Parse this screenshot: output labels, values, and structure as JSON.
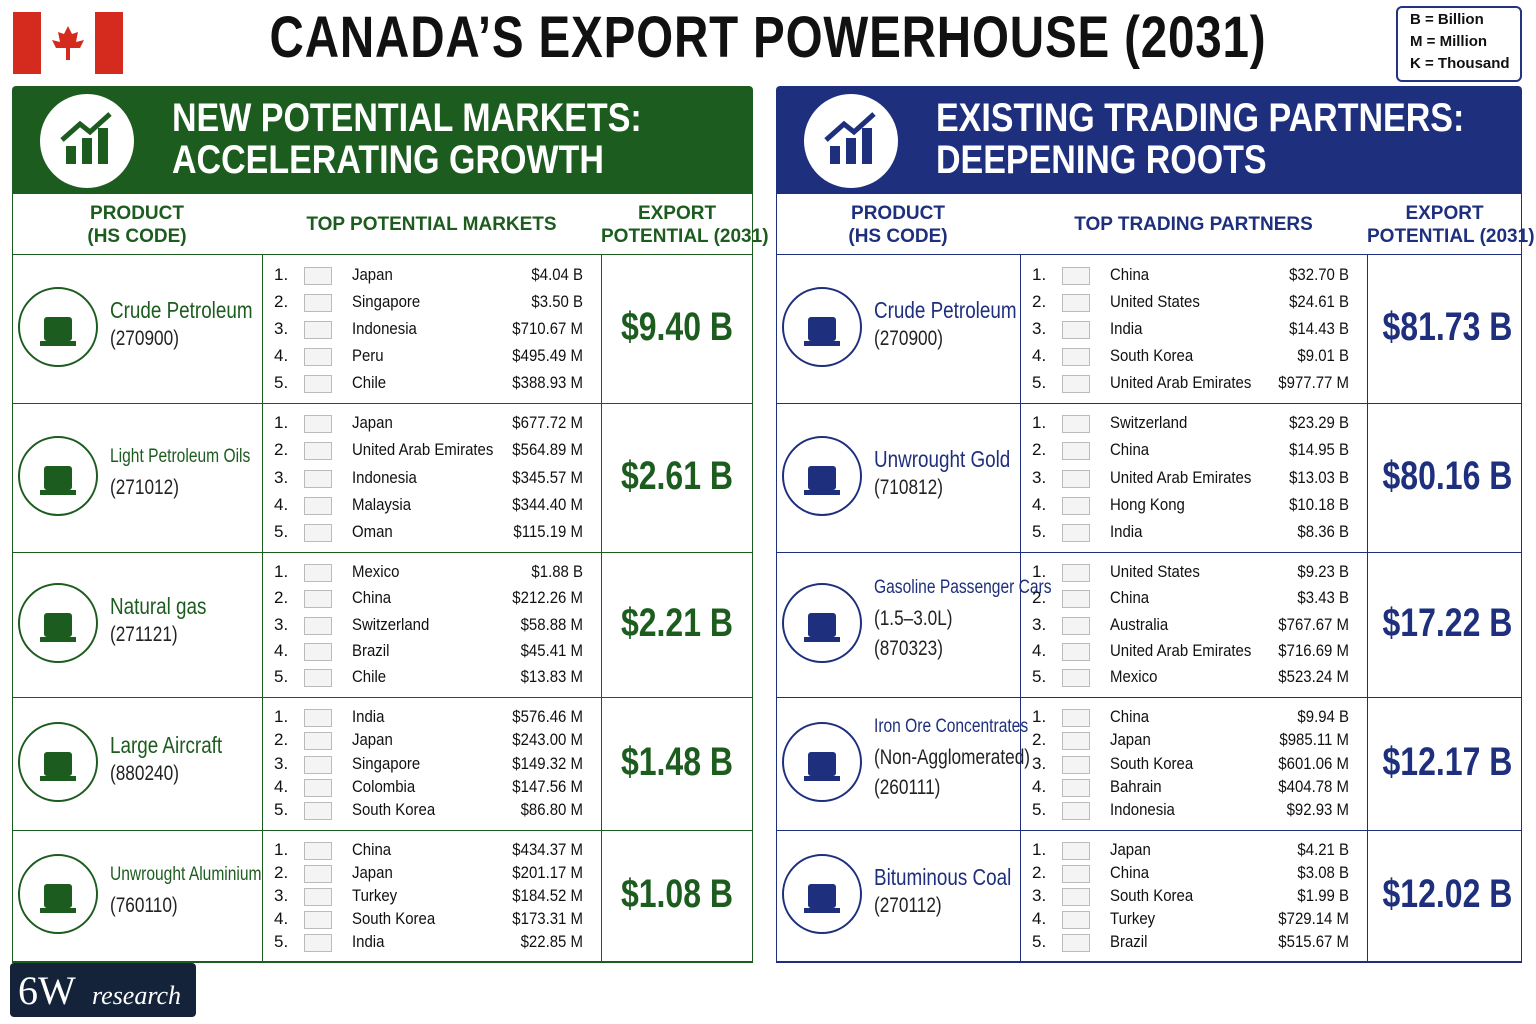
{
  "header": {
    "title": "CANADA’S EXPORT POWERHOUSE (2031)",
    "legend": [
      "B = Billion",
      "M = Million",
      "K = Thousand"
    ]
  },
  "panels": [
    {
      "title_lines": [
        "NEW POTENTIAL MARKETS:",
        "ACCELERATING GROWTH"
      ],
      "columns": [
        [
          "PRODUCT",
          "(HS CODE)"
        ],
        [
          "TOP POTENTIAL MARKETS"
        ],
        [
          "EXPORT",
          "POTENTIAL (2031)"
        ]
      ],
      "rows": [
        {
          "product": [
            "Crude Petroleum",
            "(270900)"
          ],
          "markets": [
            [
              "1.",
              "Japan",
              "$4.04 B"
            ],
            [
              "2.",
              "Singapore",
              "$3.50 B"
            ],
            [
              "3.",
              "Indonesia",
              "$710.67 M"
            ],
            [
              "4.",
              "Peru",
              "$495.49 M"
            ],
            [
              "5.",
              "Chile",
              "$388.93 M"
            ]
          ],
          "total": "$9.40 B"
        },
        {
          "product": [
            "Light Petroleum Oils",
            "(271012)"
          ],
          "markets": [
            [
              "1.",
              "Japan",
              "$677.72 M"
            ],
            [
              "2.",
              "United Arab Emirates",
              "$564.89 M"
            ],
            [
              "3.",
              "Indonesia",
              "$345.57 M"
            ],
            [
              "4.",
              "Malaysia",
              "$344.40 M"
            ],
            [
              "5.",
              "Oman",
              "$115.19 M"
            ]
          ],
          "total": "$2.61 B"
        },
        {
          "product": [
            "Natural gas",
            "(271121)"
          ],
          "markets": [
            [
              "1.",
              "Mexico",
              "$1.88 B"
            ],
            [
              "2.",
              "China",
              "$212.26 M"
            ],
            [
              "3.",
              "Switzerland",
              "$58.88 M"
            ],
            [
              "4.",
              "Brazil",
              "$45.41 M"
            ],
            [
              "5.",
              "Chile",
              "$13.83 M"
            ]
          ],
          "total": "$2.21 B"
        },
        {
          "product": [
            "Large Aircraft",
            "(880240)"
          ],
          "markets": [
            [
              "1.",
              "India",
              "$576.46 M"
            ],
            [
              "2.",
              "Japan",
              "$243.00 M"
            ],
            [
              "3.",
              "Singapore",
              "$149.32 M"
            ],
            [
              "4.",
              "Colombia",
              "$147.56 M"
            ],
            [
              "5.",
              "South Korea",
              "$86.80 M"
            ]
          ],
          "total": "$1.48 B"
        },
        {
          "product": [
            "Unwrought Aluminium",
            "(760110)"
          ],
          "markets": [
            [
              "1.",
              "China",
              "$434.37 M"
            ],
            [
              "2.",
              "Japan",
              "$201.17 M"
            ],
            [
              "3.",
              "Turkey",
              "$184.52 M"
            ],
            [
              "4.",
              "South Korea",
              "$173.31 M"
            ],
            [
              "5.",
              "India",
              "$22.85 M"
            ]
          ],
          "total": "$1.08 B"
        }
      ]
    },
    {
      "title_lines": [
        "EXISTING TRADING PARTNERS:",
        "DEEPENING ROOTS"
      ],
      "columns": [
        [
          "PRODUCT",
          "(HS CODE)"
        ],
        [
          "TOP TRADING PARTNERS"
        ],
        [
          "EXPORT",
          "POTENTIAL (2031)"
        ]
      ],
      "rows": [
        {
          "product": [
            "Crude Petroleum",
            "(270900)"
          ],
          "markets": [
            [
              "1.",
              "China",
              "$32.70 B"
            ],
            [
              "2.",
              "United States",
              "$24.61 B"
            ],
            [
              "3.",
              "India",
              "$14.43 B"
            ],
            [
              "4.",
              "South Korea",
              "$9.01 B"
            ],
            [
              "5.",
              "United Arab Emirates",
              "$977.77 M"
            ]
          ],
          "total": "$81.73 B"
        },
        {
          "product": [
            "Unwrought Gold",
            "(710812)"
          ],
          "markets": [
            [
              "1.",
              "Switzerland",
              "$23.29 B"
            ],
            [
              "2.",
              "China",
              "$14.95 B"
            ],
            [
              "3.",
              "United Arab Emirates",
              "$13.03 B"
            ],
            [
              "4.",
              "Hong Kong",
              "$10.18 B"
            ],
            [
              "5.",
              "India",
              "$8.36 B"
            ]
          ],
          "total": "$80.16 B"
        },
        {
          "product": [
            "Gasoline Passenger Cars",
            "(1.5–3.0L)",
            "(870323)"
          ],
          "markets": [
            [
              "1.",
              "United States",
              "$9.23 B"
            ],
            [
              "2.",
              "China",
              "$3.43 B"
            ],
            [
              "3.",
              "Australia",
              "$767.67 M"
            ],
            [
              "4.",
              "United Arab Emirates",
              "$716.69 M"
            ],
            [
              "5.",
              "Mexico",
              "$523.24 M"
            ]
          ],
          "total": "$17.22 B"
        },
        {
          "product": [
            "Iron Ore Concentrates",
            "(Non-Agglomerated)",
            "(260111)"
          ],
          "markets": [
            [
              "1.",
              "China",
              "$9.94 B"
            ],
            [
              "2.",
              "Japan",
              "$985.11 M"
            ],
            [
              "3.",
              "South Korea",
              "$601.06 M"
            ],
            [
              "4.",
              "Bahrain",
              "$404.78 M"
            ],
            [
              "5.",
              "Indonesia",
              "$92.93 M"
            ]
          ],
          "total": "$12.17 B"
        },
        {
          "product": [
            "Bituminous Coal",
            "(270112)"
          ],
          "markets": [
            [
              "1.",
              "Japan",
              "$4.21 B"
            ],
            [
              "2.",
              "China",
              "$3.08 B"
            ],
            [
              "3.",
              "South Korea",
              "$1.99 B"
            ],
            [
              "4.",
              "Turkey",
              "$729.14 M"
            ],
            [
              "5.",
              "Brazil",
              "$515.67 M"
            ]
          ],
          "total": "$12.02 B"
        }
      ]
    }
  ],
  "footer": {
    "logo": [
      "6W",
      "research"
    ]
  }
}
